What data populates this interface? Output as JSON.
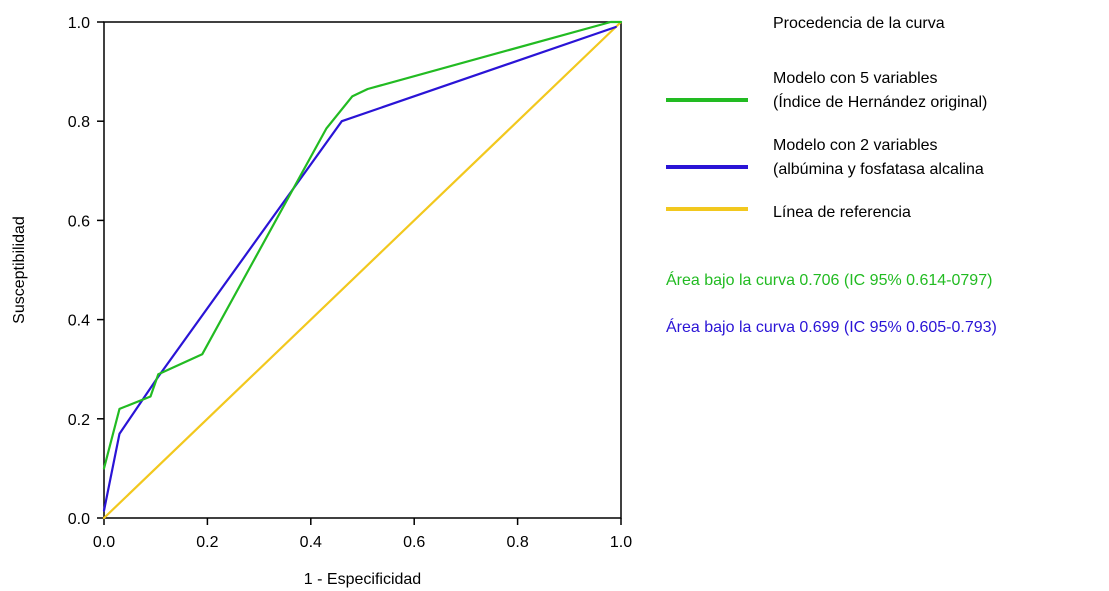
{
  "chart_data": {
    "type": "line",
    "title": "",
    "xlabel": "1 - Especificidad",
    "ylabel": "Susceptibilidad",
    "xlim": [
      0,
      1
    ],
    "ylim": [
      0,
      1
    ],
    "x_ticks": [
      "0.0",
      "0.2",
      "0.4",
      "0.6",
      "0.8",
      "1.0"
    ],
    "y_ticks": [
      "0.0",
      "0.2",
      "0.4",
      "0.6",
      "0.8",
      "1.0"
    ],
    "grid": false,
    "legend": {
      "title": "Procedencia de la curva",
      "placement": "right",
      "entries": [
        {
          "lines": [
            "Modelo con 5 variables",
            "(Índice de Hernández original)"
          ],
          "color": "#22bb22"
        },
        {
          "lines": [
            "Modelo con 2 variables",
            "(albúmina y fosfatasa alcalina"
          ],
          "color": "#2a14d6"
        },
        {
          "lines": [
            "Línea de referencia"
          ],
          "color": "#f2c81e"
        }
      ]
    },
    "annotations": [
      {
        "text": "Área bajo la curva 0.706 (IC 95% 0.614-0797)",
        "color": "#22bb22"
      },
      {
        "text": "Área bajo la curva 0.699 (IC 95% 0.605-0.793)",
        "color": "#2a14d6"
      }
    ],
    "series": [
      {
        "color": "#22bb22",
        "x": [
          0.0,
          0.03,
          0.09,
          0.105,
          0.19,
          0.43,
          0.48,
          0.51,
          0.98,
          1.0
        ],
        "y": [
          0.1,
          0.22,
          0.245,
          0.29,
          0.33,
          0.785,
          0.85,
          0.865,
          1.0,
          1.0
        ]
      },
      {
        "color": "#2a14d6",
        "x": [
          0.0,
          0.03,
          0.105,
          0.46,
          0.99
        ],
        "y": [
          0.015,
          0.17,
          0.285,
          0.8,
          0.99
        ]
      },
      {
        "color": "#f2c81e",
        "x": [
          0.0,
          1.0
        ],
        "y": [
          0.0,
          1.0
        ]
      }
    ]
  }
}
